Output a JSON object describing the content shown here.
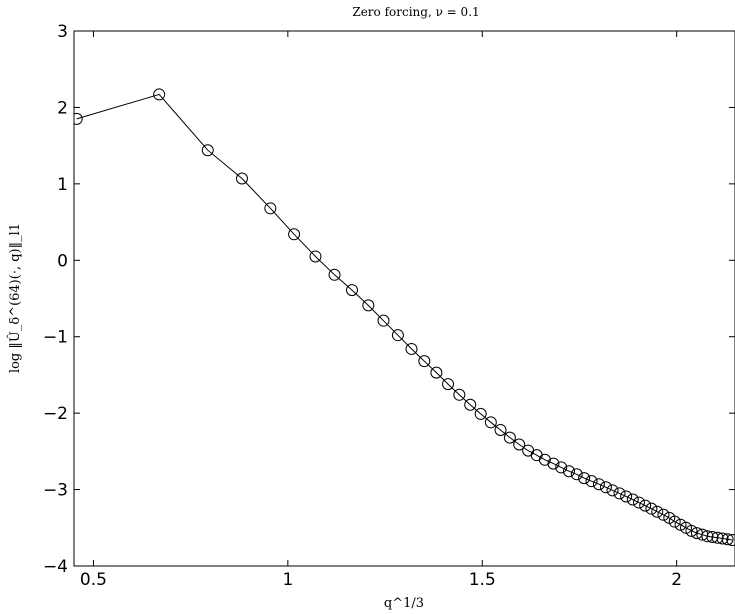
{
  "chart_data": {
    "type": "line",
    "title": "Zero forcing, ν = 0.1",
    "xlabel": "q^1/3",
    "ylabel": "log ‖Û_δ^(64)(·, q)‖_l1",
    "xlim": [
      0.45,
      2.15
    ],
    "ylim": [
      -4,
      3
    ],
    "x_ticks": [
      0.5,
      1,
      1.5,
      2
    ],
    "x_tick_labels": [
      "0.5",
      "1",
      "1.5",
      "2"
    ],
    "y_ticks": [
      -4,
      -3,
      -2,
      -1,
      0,
      1,
      2,
      3
    ],
    "y_tick_labels": [
      "−4",
      "−3",
      "−2",
      "−1",
      "0",
      "1",
      "2",
      "3"
    ],
    "grid": false,
    "legend": false,
    "line_color": "#000000",
    "marker": "open-circle",
    "series": [
      {
        "x": [
          0.457,
          0.669,
          0.794,
          0.882,
          0.955,
          1.016,
          1.071,
          1.12,
          1.165,
          1.207,
          1.246,
          1.283,
          1.318,
          1.351,
          1.382,
          1.412,
          1.441,
          1.469,
          1.496,
          1.522,
          1.547,
          1.571,
          1.595,
          1.618,
          1.64,
          1.661,
          1.683,
          1.703,
          1.723,
          1.743,
          1.762,
          1.781,
          1.8,
          1.818,
          1.835,
          1.853,
          1.87,
          1.887,
          1.903,
          1.919,
          1.935,
          1.95,
          1.966,
          1.981,
          1.995,
          2.01,
          2.024,
          2.038,
          2.052,
          2.066,
          2.079,
          2.092,
          2.105,
          2.118,
          2.131,
          2.143
        ],
        "y": [
          1.85,
          2.17,
          1.44,
          1.07,
          0.68,
          0.34,
          0.05,
          -0.19,
          -0.39,
          -0.59,
          -0.79,
          -0.98,
          -1.16,
          -1.32,
          -1.47,
          -1.62,
          -1.76,
          -1.89,
          -2.01,
          -2.12,
          -2.22,
          -2.32,
          -2.41,
          -2.49,
          -2.55,
          -2.61,
          -2.66,
          -2.71,
          -2.76,
          -2.8,
          -2.85,
          -2.89,
          -2.93,
          -2.97,
          -3.01,
          -3.05,
          -3.09,
          -3.13,
          -3.17,
          -3.21,
          -3.25,
          -3.29,
          -3.33,
          -3.37,
          -3.42,
          -3.46,
          -3.5,
          -3.54,
          -3.57,
          -3.59,
          -3.61,
          -3.62,
          -3.63,
          -3.64,
          -3.65,
          -3.66
        ]
      }
    ]
  }
}
